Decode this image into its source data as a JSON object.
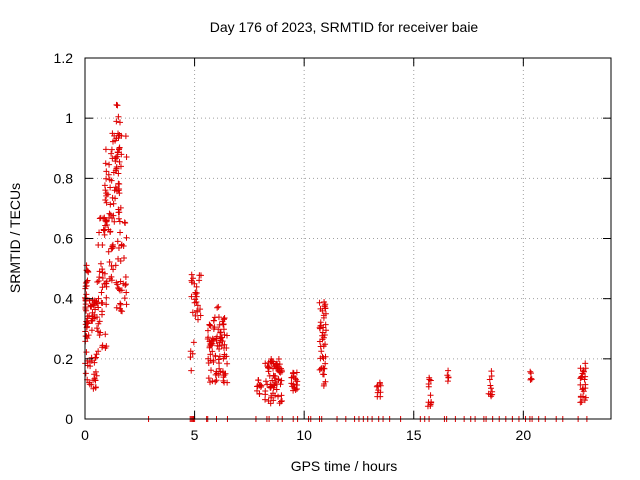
{
  "chart_data": {
    "type": "scatter",
    "title": "Day 176 of 2023, SRMTID for receiver baie",
    "xlabel": "GPS time / hours",
    "ylabel": "SRMTID / TECUs",
    "xlim": [
      0,
      24
    ],
    "ylim": [
      0,
      1.2
    ],
    "x_ticks": [
      0,
      5,
      10,
      15,
      20
    ],
    "x_tick_labels": [
      "0",
      "5",
      "10",
      "15",
      "20"
    ],
    "y_ticks": [
      0,
      0.2,
      0.4,
      0.6,
      0.8,
      1.0,
      1.2
    ],
    "y_tick_labels": [
      "0",
      "0.2",
      "0.4",
      "0.6",
      "0.8",
      "1",
      "1.2"
    ],
    "grid": true,
    "marker": "+",
    "color": "#dd0000",
    "series": [
      {
        "name": "SRMTID",
        "clusters": [
          {
            "x": [
              0.0,
              0.15
            ],
            "y": [
              0.38,
              0.53
            ],
            "n": 16
          },
          {
            "x": [
              0.0,
              0.55
            ],
            "y": [
              0.08,
              0.4
            ],
            "n": 70
          },
          {
            "x": [
              0.55,
              1.0
            ],
            "y": [
              0.22,
              0.68
            ],
            "n": 45
          },
          {
            "x": [
              0.9,
              1.3
            ],
            "y": [
              0.45,
              0.9
            ],
            "n": 45
          },
          {
            "x": [
              1.2,
              1.6
            ],
            "y": [
              0.65,
              1.05
            ],
            "n": 40
          },
          {
            "x": [
              1.4,
              1.9
            ],
            "y": [
              0.35,
              0.95
            ],
            "n": 50
          },
          {
            "x": [
              4.8,
              5.3
            ],
            "y": [
              0.33,
              0.48
            ],
            "n": 25
          },
          {
            "x": [
              4.8,
              5.0
            ],
            "y": [
              0.14,
              0.27
            ],
            "n": 5
          },
          {
            "x": [
              5.6,
              6.5
            ],
            "y": [
              0.12,
              0.34
            ],
            "n": 90
          },
          {
            "x": [
              6.0,
              6.2
            ],
            "y": [
              0.36,
              0.38
            ],
            "n": 2
          },
          {
            "x": [
              7.8,
              8.1
            ],
            "y": [
              0.08,
              0.13
            ],
            "n": 12
          },
          {
            "x": [
              8.2,
              9.0
            ],
            "y": [
              0.05,
              0.2
            ],
            "n": 70
          },
          {
            "x": [
              9.4,
              9.7
            ],
            "y": [
              0.09,
              0.16
            ],
            "n": 20
          },
          {
            "x": [
              10.7,
              11.0
            ],
            "y": [
              0.11,
              0.39
            ],
            "n": 45
          },
          {
            "x": [
              13.3,
              13.5
            ],
            "y": [
              0.07,
              0.14
            ],
            "n": 10
          },
          {
            "x": [
              15.6,
              15.8
            ],
            "y": [
              0.04,
              0.14
            ],
            "n": 12
          },
          {
            "x": [
              16.5,
              16.6
            ],
            "y": [
              0.1,
              0.17
            ],
            "n": 5
          },
          {
            "x": [
              18.4,
              18.6
            ],
            "y": [
              0.06,
              0.16
            ],
            "n": 10
          },
          {
            "x": [
              20.3,
              20.4
            ],
            "y": [
              0.12,
              0.16
            ],
            "n": 5
          },
          {
            "x": [
              22.6,
              22.9
            ],
            "y": [
              0.05,
              0.19
            ],
            "n": 25
          }
        ],
        "zero_points_x": [
          2.9,
          4.8,
          4.85,
          4.9,
          4.95,
          5.0,
          5.55,
          5.6,
          6.0,
          6.5,
          7.8,
          8.3,
          8.4,
          8.8,
          9.0,
          9.5,
          9.7,
          10.2,
          10.3,
          10.7,
          10.8,
          11.5,
          11.9,
          12.3,
          12.5,
          12.7,
          12.9,
          13.1,
          13.4,
          13.6,
          13.9,
          14.4,
          15.3,
          15.5,
          15.7,
          16.4,
          16.5,
          16.9,
          17.3,
          17.6,
          17.8,
          18.2,
          18.3,
          18.6,
          18.9,
          19.2,
          19.5,
          19.8,
          20.1,
          20.3,
          20.4,
          20.7,
          21.0,
          21.5,
          21.8,
          22.5,
          22.9
        ]
      }
    ]
  }
}
